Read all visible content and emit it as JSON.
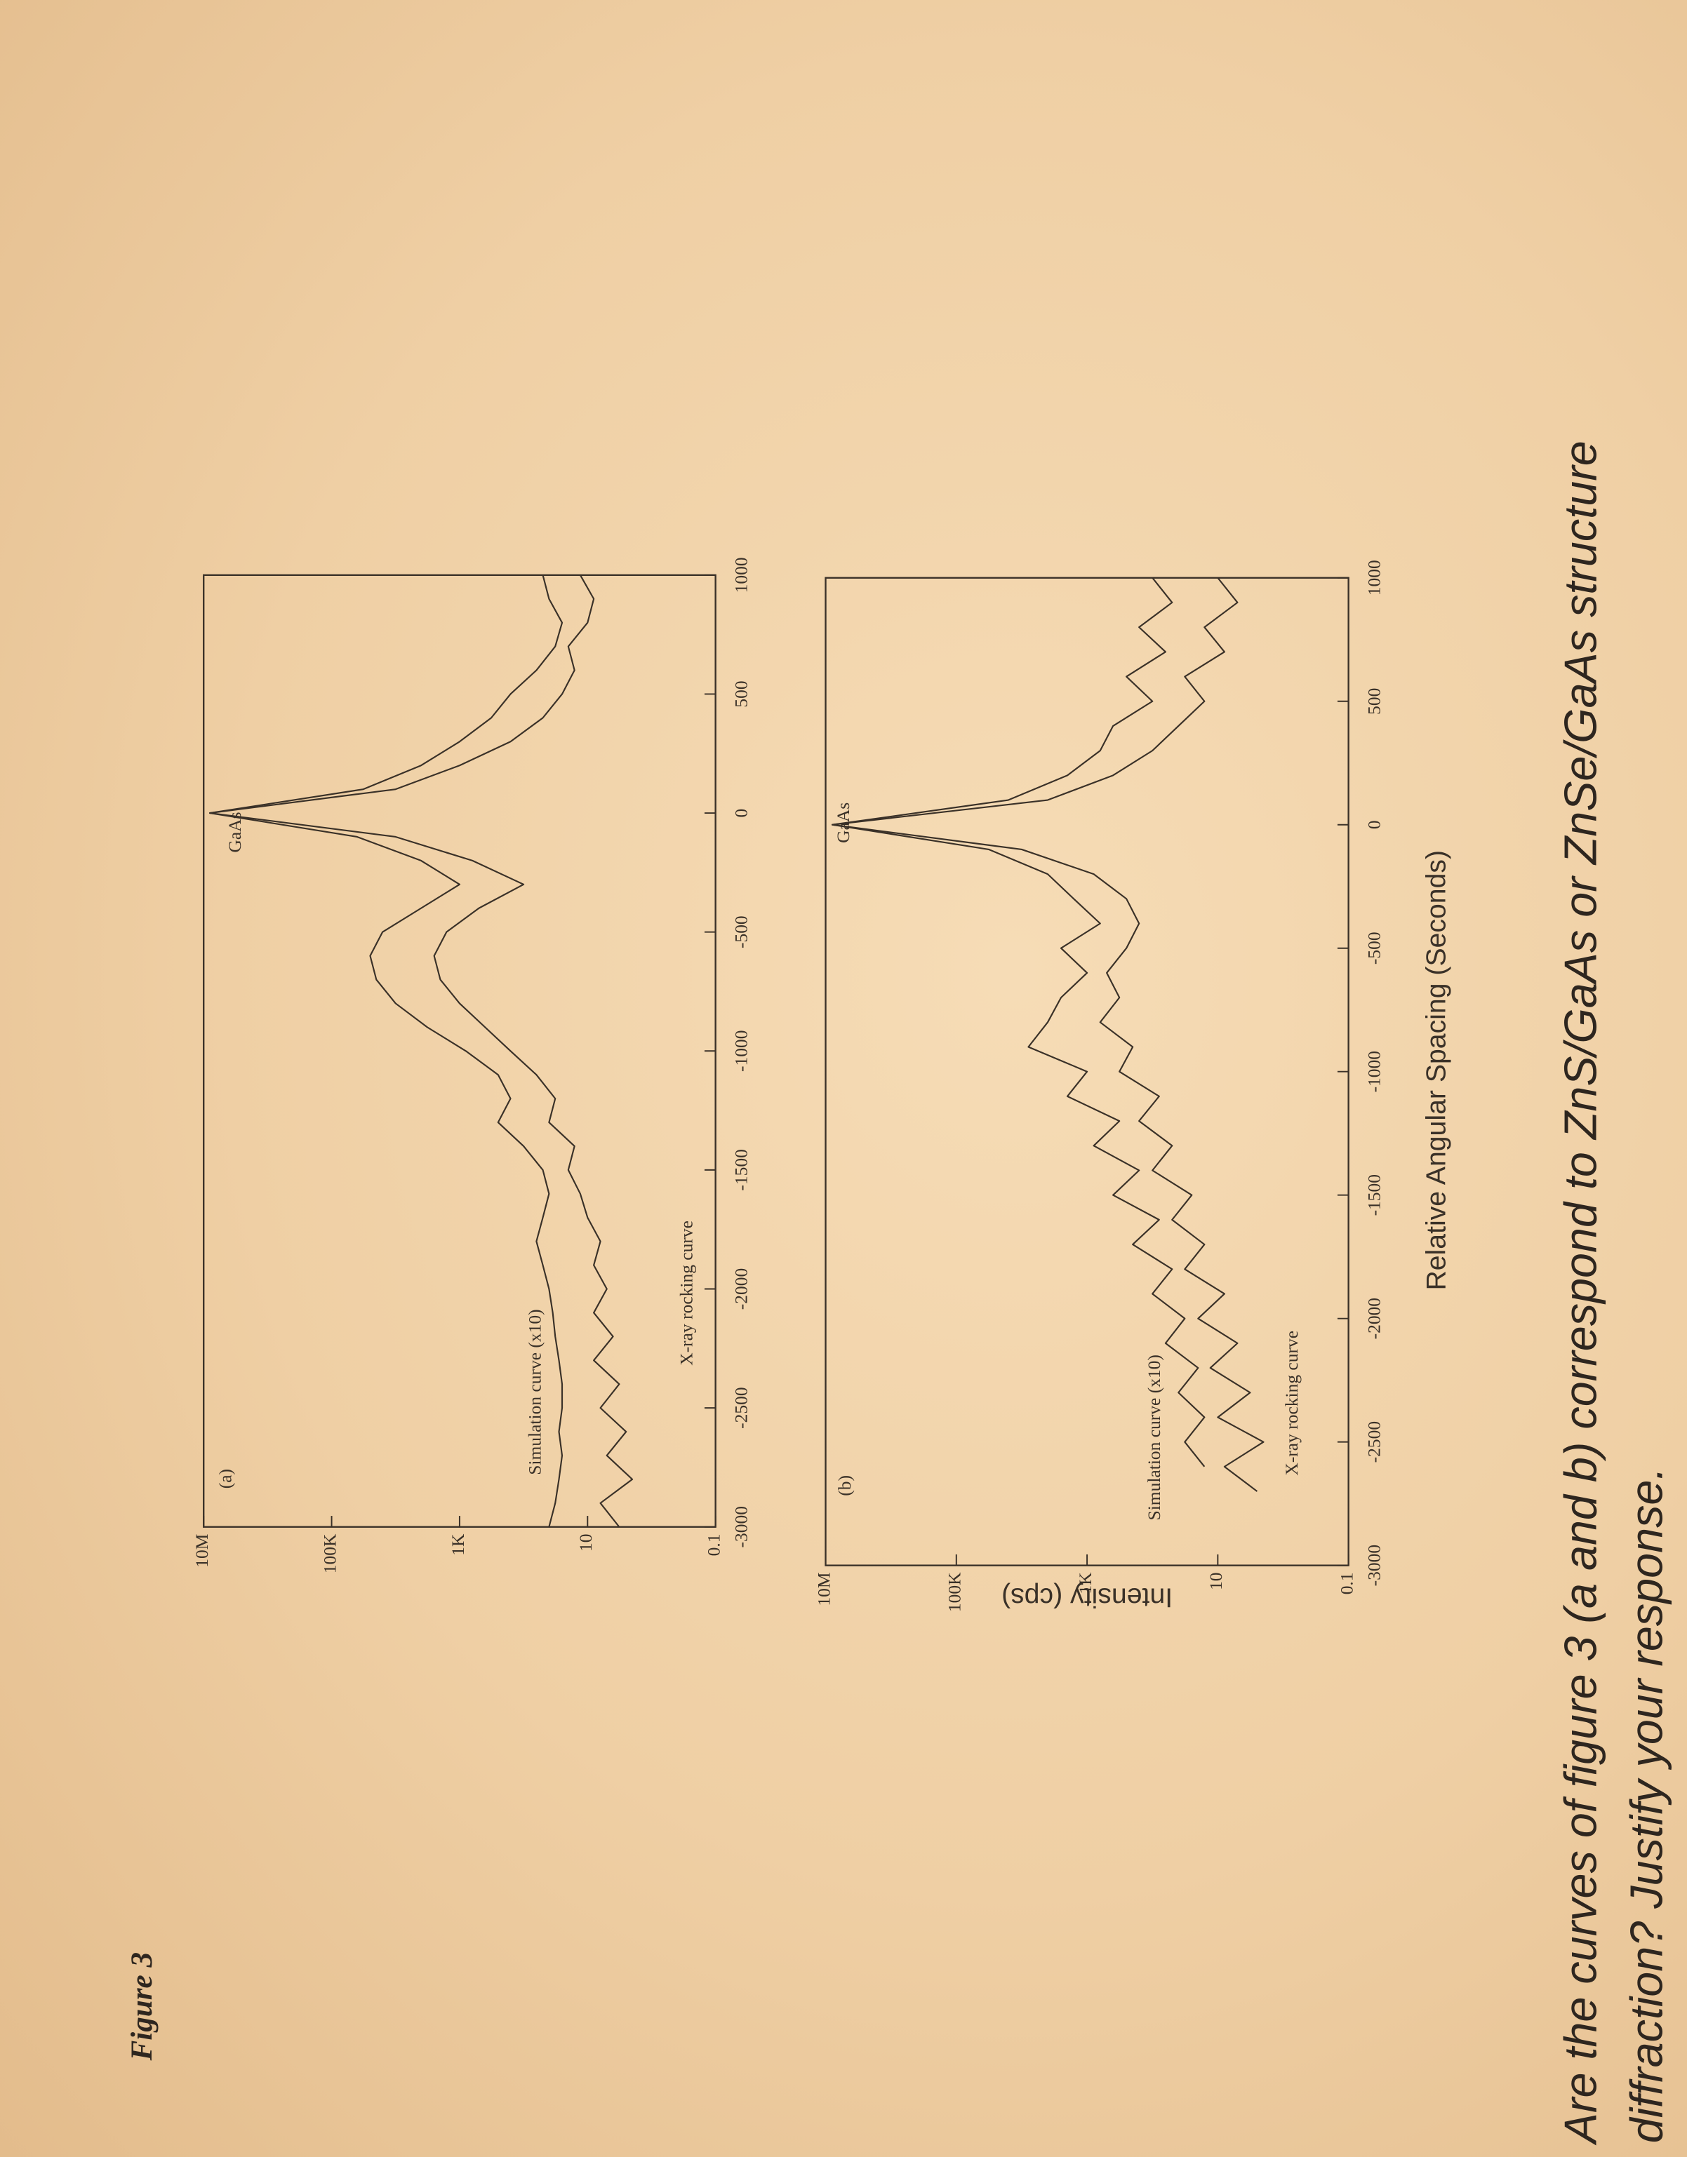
{
  "figure_title": "Figure 3",
  "axis_labels": {
    "y": "Intensity (cps)",
    "x": "Relative Angular Spacing (Seconds)"
  },
  "question": [
    "Are the curves of figure 3 (a and b) correspond to ZnS/GaAs or ZnSe/GaAs structure",
    "diffraction? Justify your response."
  ],
  "chart_data": [
    {
      "type": "line",
      "panel_label": "(a)",
      "annotations": [
        "GaAs"
      ],
      "log_y": true,
      "x": [
        -3000,
        -2900,
        -2800,
        -2700,
        -2600,
        -2500,
        -2400,
        -2300,
        -2200,
        -2100,
        -2000,
        -1900,
        -1800,
        -1700,
        -1600,
        -1500,
        -1400,
        -1300,
        -1200,
        -1100,
        -1000,
        -900,
        -800,
        -700,
        -600,
        -500,
        -400,
        -300,
        -200,
        -100,
        0,
        100,
        200,
        300,
        400,
        500,
        600,
        700,
        800,
        900,
        1000
      ],
      "series": [
        {
          "name": "Simulation curve (x10)",
          "color": "#3a3128",
          "values": [
            40,
            32,
            28,
            25,
            28,
            25,
            25,
            28,
            32,
            35,
            40,
            50,
            63,
            50,
            40,
            50,
            100,
            250,
            160,
            250,
            800,
            3200,
            10000,
            20000,
            25000,
            16000,
            4000,
            1000,
            4000,
            40000,
            8000000,
            32000,
            4000,
            1000,
            320,
            160,
            63,
            32,
            25,
            40,
            50
          ]
        },
        {
          "name": "X-ray rocking curve",
          "color": "#3a3128",
          "values": [
            3.2,
            6.3,
            2,
            5,
            2.5,
            6.3,
            3.2,
            8,
            4,
            8,
            5,
            8,
            6.3,
            10,
            13,
            20,
            16,
            40,
            32,
            63,
            160,
            400,
            1000,
            2000,
            2500,
            1600,
            500,
            100,
            630,
            10000,
            8000000,
            10000,
            1000,
            160,
            50,
            25,
            16,
            20,
            10,
            8,
            13
          ]
        }
      ],
      "xlim": [
        -3000,
        1000
      ],
      "ylim": [
        0.1,
        10000000
      ],
      "xticks": [
        -3000,
        -2500,
        -2000,
        -1500,
        -1000,
        -500,
        0,
        500,
        1000
      ],
      "yticks": [
        0.1,
        10,
        {
          "value": 1000,
          "label": "1K"
        },
        {
          "value": 100000,
          "label": "100K"
        },
        {
          "value": 10000000,
          "label": "10M"
        }
      ]
    },
    {
      "type": "line",
      "panel_label": "(b)",
      "annotations": [
        "GaAs"
      ],
      "log_y": true,
      "x": [
        -3000,
        -2900,
        -2800,
        -2700,
        -2600,
        -2500,
        -2400,
        -2300,
        -2200,
        -2100,
        -2000,
        -1900,
        -1800,
        -1700,
        -1600,
        -1500,
        -1400,
        -1300,
        -1200,
        -1100,
        -1000,
        -900,
        -800,
        -700,
        -600,
        -500,
        -400,
        -300,
        -200,
        -100,
        0,
        100,
        200,
        300,
        400,
        500,
        600,
        700,
        800,
        900,
        1000
      ],
      "series": [
        {
          "name": "Simulation curve (x10)",
          "color": "#3a3128",
          "values": [
            null,
            null,
            null,
            null,
            16,
            32,
            16,
            40,
            20,
            63,
            32,
            100,
            50,
            200,
            79,
            400,
            160,
            790,
            320,
            2000,
            1000,
            7900,
            4000,
            2500,
            1000,
            2500,
            630,
            1600,
            4000,
            32000,
            7900000,
            16000,
            2000,
            630,
            400,
            100,
            250,
            63,
            160,
            50,
            100
          ]
        },
        {
          "name": "X-ray rocking curve",
          "color": "#3a3128",
          "values": [
            null,
            null,
            null,
            2.5,
            7.9,
            2,
            10,
            3.2,
            13,
            5,
            20,
            7.9,
            32,
            16,
            50,
            25,
            100,
            50,
            160,
            79,
            320,
            200,
            630,
            320,
            500,
            250,
            160,
            250,
            790,
            10000,
            7900000,
            4000,
            400,
            100,
            40,
            16,
            32,
            7.9,
            16,
            5,
            10
          ]
        }
      ],
      "xlim": [
        -3000,
        1000
      ],
      "ylim": [
        0.1,
        10000000
      ],
      "xticks": [
        -3000,
        -2500,
        -2000,
        -1500,
        -1000,
        -500,
        0,
        500,
        1000
      ],
      "yticks": [
        0.1,
        10,
        {
          "value": 1000,
          "label": "1K"
        },
        {
          "value": 100000,
          "label": "100K"
        },
        {
          "value": 10000000,
          "label": "10M"
        }
      ]
    }
  ]
}
